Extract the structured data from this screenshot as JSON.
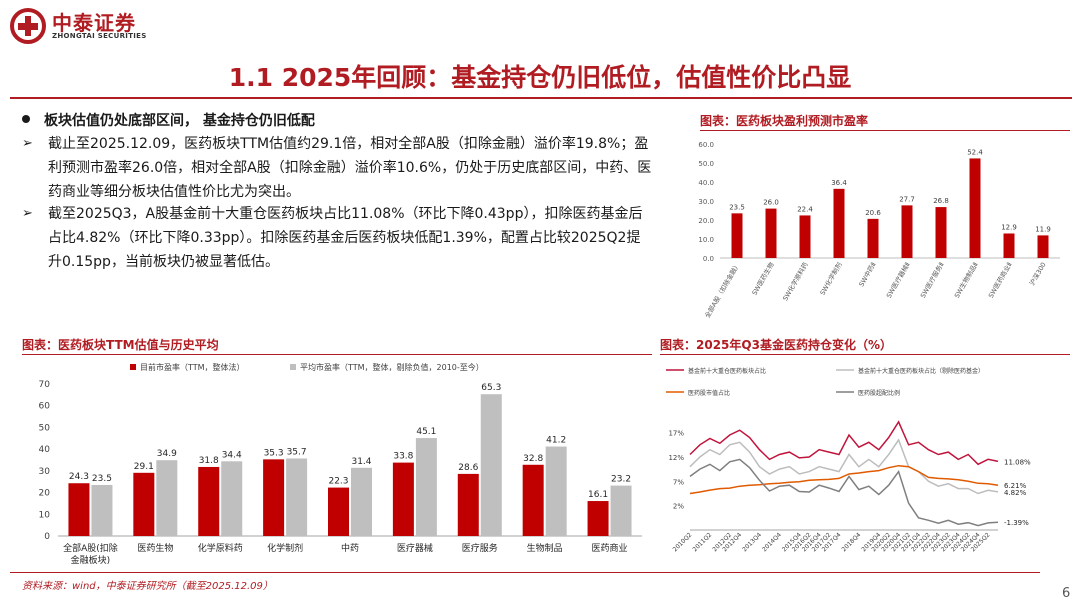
{
  "header": {
    "logo_cn": "中泰证券",
    "logo_en": "ZHONGTAI SECURITIES",
    "title": "1.1  2025年回顾：基金持仓仍旧低位，估值性价比凸显",
    "brand_color": "#b01c22"
  },
  "body": {
    "heading": "板块估值仍处底部区间， 基金持仓仍旧低配",
    "arrow": "➢",
    "para1": "截止至2025.12.09，医药板块TTM估值约29.1倍，相对全部A股（扣除金融）溢价率19.8%；盈利预测市盈率26.0倍，相对全部A股（扣除金融）溢价率10.6%，仍处于历史底部区间，中药、医药商业等细分板块估值性价比尤为突出。",
    "para2": "截至2025Q3，A股基金前十大重仓医药板块占比11.08%（环比下降0.43pp），扣除医药基金后占比4.82%（环比下降0.33pp）。扣除医药基金后医药板块低配1.39%，配置占比较2025Q2提升0.15pp，当前板块仍被显著低估。"
  },
  "footer": {
    "source": "资料来源：wind，中泰证券研究所（截至2025.12.09）",
    "page": "6"
  },
  "chart_data": [
    {
      "type": "bar",
      "title": "图表：医药板块盈利预测市盈率",
      "categories": [
        "全部A股（扣除金融）",
        "SW医药生物",
        "SW化学原料药",
        "SW化学制剂",
        "SW中药Ⅱ",
        "SW医疗器械Ⅱ",
        "SW医疗服务Ⅱ",
        "SW生物制品Ⅱ",
        "SW医药商业Ⅱ",
        "沪深300"
      ],
      "values": [
        23.5,
        26.0,
        22.4,
        36.4,
        20.6,
        27.7,
        26.8,
        52.4,
        12.9,
        11.9
      ],
      "value_labels": [
        "23.5",
        "26.0",
        "22.4",
        "36.4",
        "20.6",
        "27.7",
        "26.8",
        "52.4",
        "12.9",
        "11.9"
      ],
      "ylim": [
        0,
        60
      ],
      "yticks": [
        "0.0",
        "10.0",
        "20.0",
        "30.0",
        "40.0",
        "50.0",
        "60.0"
      ],
      "color": "#c00000"
    },
    {
      "type": "bar",
      "title": "图表：医药板块TTM估值与历史平均",
      "categories": [
        "全部A股(扣除金融板块)",
        "医药生物",
        "化学原料药",
        "化学制剂",
        "中药",
        "医疗器械",
        "医疗服务",
        "生物制品",
        "医药商业"
      ],
      "category_lines": [
        [
          "全部A股(扣除",
          "金融板块)"
        ],
        [
          "医药生物"
        ],
        [
          "化学原料药"
        ],
        [
          "化学制剂"
        ],
        [
          "中药"
        ],
        [
          "医疗器械"
        ],
        [
          "医疗服务"
        ],
        [
          "生物制品"
        ],
        [
          "医药商业"
        ]
      ],
      "series": [
        {
          "name": "目前市盈率（TTM，整体法）",
          "values": [
            24.3,
            29.1,
            31.8,
            35.3,
            22.3,
            33.8,
            28.6,
            32.8,
            16.1
          ],
          "labels": [
            "24.3",
            "29.1",
            "31.8",
            "35.3",
            "22.3",
            "33.8",
            "28.6",
            "32.8",
            "16.1"
          ],
          "color": "#c00000"
        },
        {
          "name": "平均市盈率（TTM，整体，剔除负值，2010-至今）",
          "values": [
            23.5,
            34.9,
            34.4,
            35.7,
            31.4,
            45.1,
            65.3,
            41.2,
            23.2
          ],
          "labels": [
            "23.5",
            "34.9",
            "34.4",
            "35.7",
            "31.4",
            "45.1",
            "65.3",
            "41.2",
            "23.2"
          ],
          "color": "#bfbfbf"
        }
      ],
      "ylim": [
        0,
        70
      ],
      "yticks": [
        "0",
        "10",
        "20",
        "30",
        "40",
        "50",
        "60",
        "70"
      ]
    },
    {
      "type": "line",
      "title": "图表：2025年Q3基金医药持仓变化（%）",
      "x": [
        "2010Q2",
        "2010Q4",
        "2011Q2",
        "2011Q4",
        "2012Q2",
        "2012Q4",
        "2013Q2",
        "2013Q4",
        "2014Q2",
        "2014Q4",
        "2015Q2",
        "2015Q4",
        "2016Q2",
        "2016Q4",
        "2017Q2",
        "2017Q4",
        "2018Q2",
        "2018Q4",
        "2019Q2",
        "2019Q4",
        "2020Q2",
        "2020Q4",
        "2021Q2",
        "2021Q4",
        "2022Q2",
        "2022Q4",
        "2023Q2",
        "2023Q4",
        "2024Q2",
        "2024Q4",
        "2025Q2",
        "2025Q3"
      ],
      "x_tick_labels": [
        "2010Q2",
        "2011Q2",
        "2012Q2",
        "2012Q4",
        "2013Q4",
        "2014Q4",
        "2015Q4",
        "2016Q2",
        "2016Q4",
        "2017Q2",
        "2017Q4",
        "2018Q4",
        "2019Q4",
        "2020Q2",
        "2020Q4",
        "2021Q2",
        "2021Q4",
        "2022Q2",
        "2022Q4",
        "2023Q2",
        "2023Q4",
        "2024Q2",
        "2024Q4",
        "2025Q2"
      ],
      "yticks": [
        "2%",
        "7%",
        "12%",
        "17%"
      ],
      "ylim": [
        -3,
        20
      ],
      "series": [
        {
          "name": "基金前十大重仓医药板块占比",
          "color": "#c0143c",
          "values": [
            12.5,
            14.5,
            15.8,
            14.8,
            16.5,
            17.5,
            16.0,
            13.5,
            11.5,
            12.5,
            13.0,
            11.8,
            12.0,
            13.5,
            13.0,
            12.5,
            16.5,
            14.0,
            15.0,
            13.5,
            16.0,
            19.2,
            14.5,
            15.0,
            13.5,
            12.5,
            13.0,
            11.5,
            12.5,
            10.5,
            11.51,
            11.08
          ],
          "end_label": "11.08%"
        },
        {
          "name": "基金前十大重仓医药板块占比（剔除医药基金）",
          "color": "#bdbdbd",
          "values": [
            10.0,
            12.0,
            13.5,
            12.5,
            14.5,
            15.0,
            13.0,
            10.0,
            8.5,
            9.5,
            10.0,
            8.5,
            9.0,
            10.0,
            9.5,
            9.0,
            12.5,
            10.0,
            11.5,
            10.0,
            12.5,
            15.5,
            10.0,
            9.0,
            7.0,
            6.0,
            6.5,
            5.5,
            5.5,
            4.5,
            5.15,
            4.82
          ],
          "end_label": "4.82%"
        },
        {
          "name": "医药股市值占比",
          "color": "#e05a00",
          "values": [
            4.5,
            4.8,
            5.2,
            5.5,
            5.6,
            6.0,
            6.2,
            6.3,
            6.5,
            6.6,
            6.8,
            6.9,
            7.2,
            7.3,
            7.4,
            7.6,
            8.5,
            8.7,
            9.0,
            9.2,
            9.8,
            10.2,
            10.0,
            9.0,
            7.8,
            7.6,
            7.5,
            7.3,
            7.0,
            6.6,
            6.5,
            6.21
          ],
          "end_label": "6.21%"
        },
        {
          "name": "医药股超配比例",
          "color": "#7f7f7f",
          "values": [
            8.0,
            9.5,
            10.5,
            9.2,
            11.0,
            11.5,
            9.8,
            7.2,
            5.0,
            6.0,
            6.2,
            4.9,
            4.8,
            6.2,
            5.6,
            4.9,
            8.0,
            5.3,
            6.0,
            4.3,
            6.2,
            9.0,
            2.5,
            -0.5,
            -1.0,
            -1.6,
            -1.0,
            -1.8,
            -1.5,
            -2.1,
            -1.54,
            -1.39
          ],
          "end_label": "-1.39%"
        }
      ]
    }
  ]
}
